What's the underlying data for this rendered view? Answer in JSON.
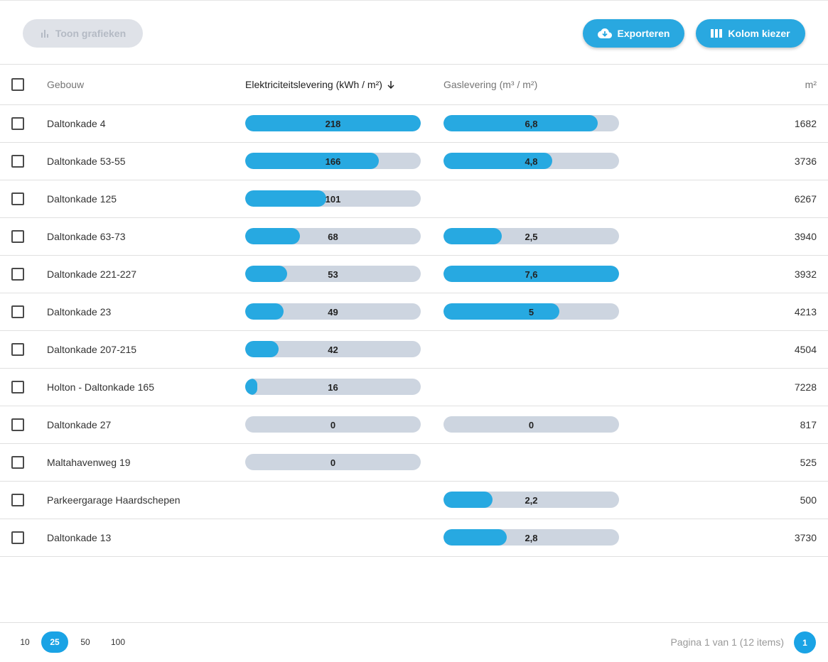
{
  "toolbar": {
    "show_charts_label": "Toon grafieken",
    "export_label": "Exporteren",
    "columns_label": "Kolom kiezer"
  },
  "table": {
    "headers": {
      "building": "Gebouw",
      "electricity": "Elektriciteitslevering (kWh / m²)",
      "gas": "Gaslevering (m³ / m²)",
      "area": "m²"
    },
    "rows": [
      {
        "name": "Daltonkade 4",
        "elec": "218",
        "elec_pct": 100,
        "gas": "6,8",
        "gas_pct": 88,
        "m2": "1682"
      },
      {
        "name": "Daltonkade 53-55",
        "elec": "166",
        "elec_pct": 76,
        "gas": "4,8",
        "gas_pct": 62,
        "m2": "3736"
      },
      {
        "name": "Daltonkade 125",
        "elec": "101",
        "elec_pct": 46,
        "gas": null,
        "gas_pct": null,
        "m2": "6267"
      },
      {
        "name": "Daltonkade 63-73",
        "elec": "68",
        "elec_pct": 31,
        "gas": "2,5",
        "gas_pct": 33,
        "m2": "3940"
      },
      {
        "name": "Daltonkade 221-227",
        "elec": "53",
        "elec_pct": 24,
        "gas": "7,6",
        "gas_pct": 100,
        "m2": "3932"
      },
      {
        "name": "Daltonkade 23",
        "elec": "49",
        "elec_pct": 22,
        "gas": "5",
        "gas_pct": 66,
        "m2": "4213"
      },
      {
        "name": "Daltonkade 207-215",
        "elec": "42",
        "elec_pct": 19,
        "gas": null,
        "gas_pct": null,
        "m2": "4504"
      },
      {
        "name": "Holton - Daltonkade 165",
        "elec": "16",
        "elec_pct": 7,
        "gas": null,
        "gas_pct": null,
        "m2": "7228"
      },
      {
        "name": "Daltonkade 27",
        "elec": "0",
        "elec_pct": 0,
        "gas": "0",
        "gas_pct": 0,
        "m2": "817"
      },
      {
        "name": "Maltahavenweg 19",
        "elec": "0",
        "elec_pct": 0,
        "gas": null,
        "gas_pct": null,
        "m2": "525"
      },
      {
        "name": "Parkeergarage Haardschepen",
        "elec": null,
        "elec_pct": null,
        "gas": "2,2",
        "gas_pct": 28,
        "m2": "500"
      },
      {
        "name": "Daltonkade 13",
        "elec": null,
        "elec_pct": null,
        "gas": "2,8",
        "gas_pct": 36,
        "m2": "3730"
      }
    ]
  },
  "footer": {
    "page_sizes": [
      "10",
      "25",
      "50",
      "100"
    ],
    "active_page_size": "25",
    "page_info": "Pagina 1 van 1 (12 items)",
    "current_page": "1"
  },
  "colors": {
    "accent": "#29a8e0",
    "bar_track": "#cdd5e0",
    "disabled_button": "#dfe2e8"
  }
}
